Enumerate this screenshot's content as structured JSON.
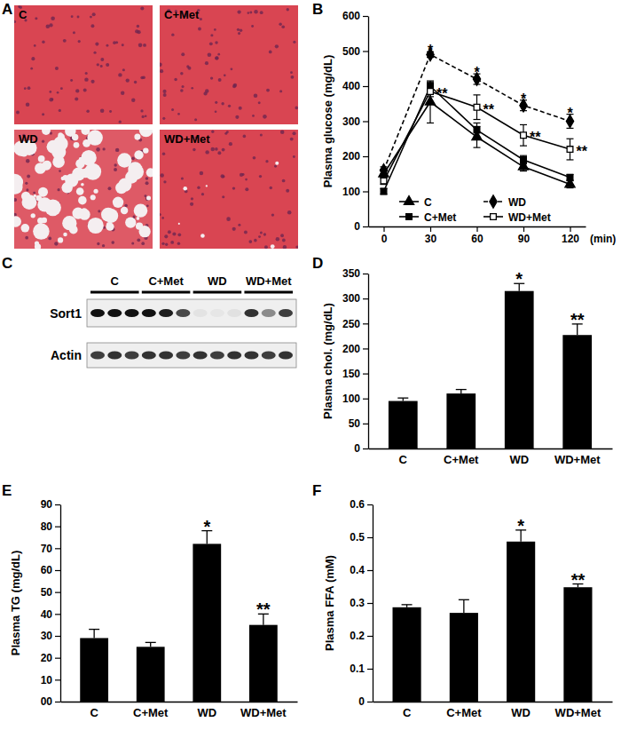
{
  "histology": {
    "title": "A",
    "images": [
      "C",
      "C+Met",
      "WD",
      "WD+Met"
    ]
  },
  "chart_data": [
    {
      "type": "line",
      "title": "B",
      "x_label": "(min)",
      "y_label": "Plasma glucose (mg/dL)",
      "x": [
        0,
        30,
        60,
        90,
        120
      ],
      "xlim": [
        -10,
        130
      ],
      "xticks": [
        0,
        30,
        60,
        90,
        120
      ],
      "ylim": [
        0,
        600
      ],
      "yticks": [
        0,
        100,
        200,
        300,
        400,
        500,
        600
      ],
      "legend": "lower left",
      "series": [
        {
          "name": "C",
          "color": "#000000",
          "marker": "triangle",
          "line_style": "solid",
          "values": [
            150,
            355,
            255,
            170,
            120
          ],
          "errors": [
            12,
            60,
            30,
            12,
            10
          ]
        },
        {
          "name": "C+Met",
          "color": "#000000",
          "marker": "square",
          "line_style": "solid",
          "values": [
            100,
            400,
            275,
            190,
            140
          ],
          "errors": [
            8,
            12,
            20,
            12,
            8
          ]
        },
        {
          "name": "WD",
          "color": "#000000",
          "marker": "diamond",
          "line_style": "dashed",
          "values": [
            160,
            490,
            420,
            345,
            300
          ],
          "errors": [
            10,
            8,
            15,
            15,
            20
          ],
          "annotations": [
            null,
            "*",
            "*",
            "*",
            "*"
          ]
        },
        {
          "name": "WD+Met",
          "color": "#000000",
          "marker": "square-open",
          "line_style": "solid",
          "values": [
            130,
            385,
            340,
            260,
            220
          ],
          "errors": [
            10,
            15,
            35,
            30,
            30
          ],
          "annotations": [
            null,
            "**",
            "**",
            "**",
            "**"
          ]
        }
      ]
    },
    {
      "type": "bar",
      "title": "D",
      "y_label": "Plasma chol. (mg/dL)",
      "categories": [
        "C",
        "C+Met",
        "WD",
        "WD+Met"
      ],
      "values": [
        95,
        110,
        315,
        227
      ],
      "errors": [
        6,
        8,
        15,
        22
      ],
      "annotations": [
        null,
        null,
        "*",
        "**"
      ],
      "color": "#000000",
      "ylim": [
        0,
        350
      ],
      "yticks": [
        0,
        50,
        100,
        150,
        200,
        250,
        300,
        350
      ]
    },
    {
      "type": "bar",
      "title": "E",
      "y_label": "Plasma TG (mg/dL)",
      "categories": [
        "C",
        "C+Met",
        "WD",
        "WD+Met"
      ],
      "values": [
        29,
        25,
        72,
        35
      ],
      "errors": [
        4,
        2,
        6,
        5
      ],
      "annotations": [
        null,
        null,
        "*",
        "**"
      ],
      "color": "#000000",
      "ylim": [
        0,
        90
      ],
      "yticks": [
        {
          "value": 0,
          "label": "00"
        },
        10,
        20,
        30,
        40,
        50,
        60,
        70,
        80,
        90
      ]
    },
    {
      "type": "bar",
      "title": "F",
      "y_label": "Plasma FFA (mM)",
      "categories": [
        "C",
        "C+Met",
        "WD",
        "WD+Met"
      ],
      "values": [
        0.287,
        0.27,
        0.487,
        0.348
      ],
      "errors": [
        0.008,
        0.04,
        0.035,
        0.01
      ],
      "annotations": [
        null,
        null,
        "*",
        "**"
      ],
      "color": "#000000",
      "ylim": [
        0,
        0.6
      ],
      "yticks": [
        0,
        0.1,
        0.2,
        0.3,
        0.4,
        0.5,
        0.6
      ]
    }
  ],
  "blot": {
    "title": "C",
    "groups": [
      "C",
      "C+Met",
      "WD",
      "WD+Met"
    ],
    "rows": [
      {
        "name": "Sort1",
        "bands": [
          1,
          1,
          1,
          1,
          0.95,
          0.75,
          0.05,
          0.04,
          0.06,
          0.85,
          0.45,
          0.8
        ]
      },
      {
        "name": "Actin",
        "bands": [
          0.8,
          0.85,
          0.8,
          0.85,
          0.85,
          0.8,
          0.85,
          0.8,
          0.85,
          0.85,
          0.8,
          0.85
        ]
      }
    ]
  }
}
